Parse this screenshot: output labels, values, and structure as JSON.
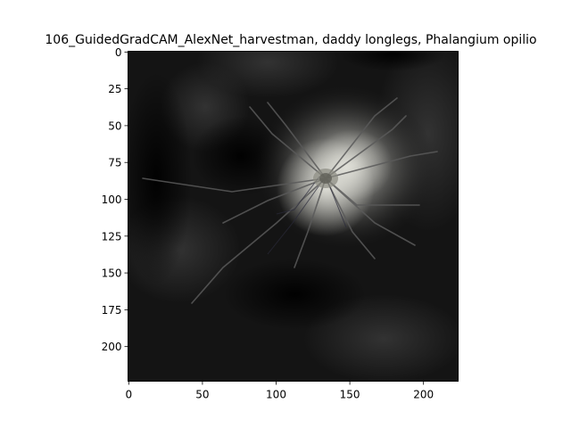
{
  "figure": {
    "title": "106_GuidedGradCAM_AlexNet_harvestman, daddy longlegs, Phalangium opilio"
  },
  "image_panel": {
    "description_colors": {
      "background": "#0a0a0a",
      "highlight": "#d6d6cf",
      "frame": "#000000"
    },
    "x_ticks": [
      0,
      50,
      100,
      150,
      200
    ],
    "y_ticks": [
      0,
      25,
      50,
      75,
      100,
      125,
      150,
      175,
      200
    ],
    "x_range": [
      0,
      224
    ],
    "y_range": [
      0,
      224
    ]
  }
}
